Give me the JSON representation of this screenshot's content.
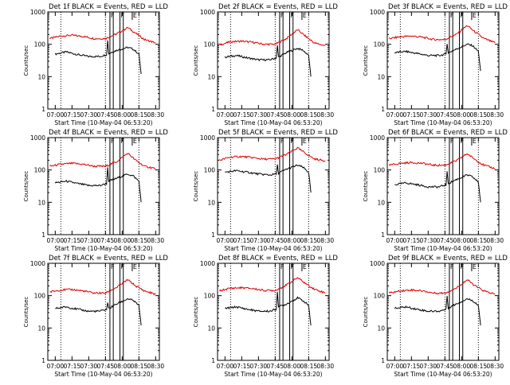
{
  "page": {
    "background": "#ffffff",
    "axis_color": "#000000"
  },
  "chart_data": [
    {
      "type": "line",
      "title": "Det 1f BLACK = Events, RED = LLD",
      "xlabel": "Start Time (10-May-04 06:53:20)",
      "ylabel": "Counts/sec",
      "x_ticks": [
        "07:00",
        "07:15",
        "07:30",
        "07:45",
        "08:00",
        "08:15",
        "08:30"
      ],
      "y_ticks": [
        "1",
        "10",
        "100",
        "1000"
      ],
      "ylim": [
        1,
        1000
      ],
      "y_scale": "log",
      "xlim": [
        "06:53:20",
        "08:33:20"
      ],
      "vertical_dotted_lines": [
        "07:05",
        "07:45",
        "08:15"
      ],
      "band_markers": [
        {
          "label": "F",
          "from": "07:49",
          "to": "07:52"
        },
        {
          "label": "F",
          "from": "07:58",
          "to": "08:01"
        },
        {
          "label": "E",
          "from": "08:09",
          "to": "08:09"
        }
      ],
      "series": [
        {
          "name": "BLACK = Events",
          "color": "#000000",
          "x": [
            "07:00",
            "07:10",
            "07:20",
            "07:30",
            "07:40",
            "07:46",
            "07:47",
            "07:48",
            "07:55",
            "08:05",
            "08:10",
            "08:15",
            "08:17"
          ],
          "y": [
            50,
            58,
            48,
            42,
            42,
            48,
            130,
            52,
            65,
            80,
            70,
            50,
            12
          ]
        },
        {
          "name": "RED = LLD",
          "color": "#dd0000",
          "x": [
            "06:55",
            "07:05",
            "07:15",
            "07:25",
            "07:35",
            "07:45",
            "07:55",
            "08:05",
            "08:12",
            "08:20",
            "08:30"
          ],
          "y": [
            150,
            180,
            190,
            175,
            150,
            150,
            210,
            330,
            220,
            140,
            110
          ]
        }
      ]
    },
    {
      "type": "line",
      "title": "Det 2f BLACK = Events, RED = LLD",
      "xlabel": "Start Time (10-May-04 06:53:20)",
      "ylabel": "Counts/sec",
      "x_ticks": [
        "07:00",
        "07:15",
        "07:30",
        "07:45",
        "08:00",
        "08:15",
        "08:30"
      ],
      "y_ticks": [
        "1",
        "10",
        "100",
        "1000"
      ],
      "ylim": [
        1,
        1000
      ],
      "y_scale": "log",
      "xlim": [
        "06:53:20",
        "08:33:20"
      ],
      "vertical_dotted_lines": [
        "07:05",
        "07:45",
        "08:15"
      ],
      "band_markers": [
        {
          "label": "F",
          "from": "07:49",
          "to": "07:52"
        },
        {
          "label": "F",
          "from": "07:58",
          "to": "08:01"
        },
        {
          "label": "E",
          "from": "08:09",
          "to": "08:09"
        }
      ],
      "series": [
        {
          "name": "BLACK = Events",
          "color": "#000000",
          "x": [
            "07:00",
            "07:10",
            "07:20",
            "07:30",
            "07:40",
            "07:46",
            "07:47",
            "07:48",
            "07:55",
            "08:05",
            "08:10",
            "08:15",
            "08:17"
          ],
          "y": [
            40,
            45,
            38,
            33,
            33,
            38,
            90,
            40,
            55,
            75,
            65,
            45,
            10
          ]
        },
        {
          "name": "RED = LLD",
          "color": "#dd0000",
          "x": [
            "06:55",
            "07:05",
            "07:15",
            "07:25",
            "07:35",
            "07:45",
            "07:55",
            "08:05",
            "08:12",
            "08:20",
            "08:30"
          ],
          "y": [
            95,
            120,
            125,
            115,
            100,
            100,
            150,
            280,
            180,
            110,
            90
          ]
        }
      ]
    },
    {
      "type": "line",
      "title": "Det 3f BLACK = Events, RED = LLD",
      "xlabel": "Start Time (10-May-04 06:53:20)",
      "ylabel": "Counts/sec",
      "x_ticks": [
        "07:00",
        "07:15",
        "07:30",
        "07:45",
        "08:00",
        "08:15",
        "08:30"
      ],
      "y_ticks": [
        "1",
        "10",
        "100",
        "1000"
      ],
      "ylim": [
        1,
        1000
      ],
      "y_scale": "log",
      "xlim": [
        "06:53:20",
        "08:33:20"
      ],
      "vertical_dotted_lines": [
        "07:05",
        "07:45",
        "08:15"
      ],
      "band_markers": [
        {
          "label": "F",
          "from": "07:49",
          "to": "07:52"
        },
        {
          "label": "F",
          "from": "07:58",
          "to": "08:01"
        },
        {
          "label": "E",
          "from": "08:09",
          "to": "08:09"
        }
      ],
      "series": [
        {
          "name": "BLACK = Events",
          "color": "#000000",
          "x": [
            "07:00",
            "07:10",
            "07:20",
            "07:30",
            "07:40",
            "07:46",
            "07:47",
            "07:48",
            "07:55",
            "08:05",
            "08:10",
            "08:15",
            "08:17"
          ],
          "y": [
            55,
            60,
            52,
            45,
            45,
            50,
            110,
            55,
            70,
            100,
            90,
            60,
            15
          ]
        },
        {
          "name": "RED = LLD",
          "color": "#dd0000",
          "x": [
            "06:55",
            "07:05",
            "07:15",
            "07:25",
            "07:35",
            "07:45",
            "07:55",
            "08:05",
            "08:12",
            "08:20",
            "08:30"
          ],
          "y": [
            150,
            170,
            180,
            165,
            140,
            140,
            200,
            380,
            240,
            150,
            110
          ]
        }
      ]
    },
    {
      "type": "line",
      "title": "Det 4f BLACK = Events, RED = LLD",
      "xlabel": "Start Time (10-May-04 06:53:20)",
      "ylabel": "Counts/sec",
      "x_ticks": [
        "07:00",
        "07:15",
        "07:30",
        "07:45",
        "08:00",
        "08:15",
        "08:30"
      ],
      "y_ticks": [
        "1",
        "10",
        "100",
        "1000"
      ],
      "ylim": [
        1,
        1000
      ],
      "y_scale": "log",
      "xlim": [
        "06:53:20",
        "08:33:20"
      ],
      "vertical_dotted_lines": [
        "07:05",
        "07:45",
        "08:15"
      ],
      "band_markers": [
        {
          "label": "F",
          "from": "07:49",
          "to": "07:52"
        },
        {
          "label": "F",
          "from": "07:58",
          "to": "08:01"
        },
        {
          "label": "E",
          "from": "08:09",
          "to": "08:09"
        }
      ],
      "series": [
        {
          "name": "BLACK = Events",
          "color": "#000000",
          "x": [
            "07:00",
            "07:10",
            "07:20",
            "07:30",
            "07:40",
            "07:46",
            "07:47",
            "07:48",
            "07:55",
            "08:05",
            "08:10",
            "08:15",
            "08:17"
          ],
          "y": [
            40,
            45,
            38,
            33,
            33,
            38,
            120,
            45,
            55,
            75,
            65,
            45,
            10
          ]
        },
        {
          "name": "RED = LLD",
          "color": "#dd0000",
          "x": [
            "06:55",
            "07:05",
            "07:15",
            "07:25",
            "07:35",
            "07:45",
            "07:55",
            "08:05",
            "08:12",
            "08:20",
            "08:30"
          ],
          "y": [
            130,
            150,
            160,
            150,
            130,
            130,
            180,
            330,
            200,
            130,
            110
          ]
        }
      ]
    },
    {
      "type": "line",
      "title": "Det 5f BLACK = Events, RED = LLD",
      "xlabel": "Start Time (10-May-04 06:53:20)",
      "ylabel": "Counts/sec",
      "x_ticks": [
        "07:00",
        "07:15",
        "07:30",
        "07:45",
        "08:00",
        "08:15",
        "08:30"
      ],
      "y_ticks": [
        "1",
        "10",
        "100",
        "1000"
      ],
      "ylim": [
        1,
        1000
      ],
      "y_scale": "log",
      "xlim": [
        "06:53:20",
        "08:33:20"
      ],
      "vertical_dotted_lines": [
        "07:05",
        "07:45",
        "08:15"
      ],
      "band_markers": [
        {
          "label": "F",
          "from": "07:49",
          "to": "07:52"
        },
        {
          "label": "F",
          "from": "07:58",
          "to": "08:01"
        },
        {
          "label": "E",
          "from": "08:09",
          "to": "08:09"
        }
      ],
      "series": [
        {
          "name": "BLACK = Events",
          "color": "#000000",
          "x": [
            "07:00",
            "07:10",
            "07:20",
            "07:30",
            "07:40",
            "07:46",
            "07:47",
            "07:48",
            "07:55",
            "08:05",
            "08:10",
            "08:15",
            "08:17"
          ],
          "y": [
            85,
            95,
            85,
            75,
            70,
            75,
            140,
            80,
            105,
            140,
            120,
            85,
            20
          ]
        },
        {
          "name": "RED = LLD",
          "color": "#dd0000",
          "x": [
            "06:55",
            "07:05",
            "07:15",
            "07:25",
            "07:35",
            "07:45",
            "07:55",
            "08:05",
            "08:12",
            "08:20",
            "08:30"
          ],
          "y": [
            200,
            250,
            260,
            240,
            215,
            220,
            300,
            480,
            330,
            220,
            190
          ]
        }
      ]
    },
    {
      "type": "line",
      "title": "Det 6f BLACK = Events, RED = LLD",
      "xlabel": "Start Time (10-May-04 06:53:20)",
      "ylabel": "Counts/sec",
      "x_ticks": [
        "07:00",
        "07:15",
        "07:30",
        "07:45",
        "08:00",
        "08:15",
        "08:30"
      ],
      "y_ticks": [
        "1",
        "10",
        "100",
        "1000"
      ],
      "ylim": [
        1,
        1000
      ],
      "y_scale": "log",
      "xlim": [
        "06:53:20",
        "08:33:20"
      ],
      "vertical_dotted_lines": [
        "07:05",
        "07:45",
        "08:15"
      ],
      "band_markers": [
        {
          "label": "F",
          "from": "07:49",
          "to": "07:52"
        },
        {
          "label": "F",
          "from": "07:58",
          "to": "08:01"
        },
        {
          "label": "E",
          "from": "08:09",
          "to": "08:09"
        }
      ],
      "series": [
        {
          "name": "BLACK = Events",
          "color": "#000000",
          "x": [
            "07:00",
            "07:10",
            "07:20",
            "07:30",
            "07:40",
            "07:46",
            "07:47",
            "07:48",
            "07:55",
            "08:05",
            "08:10",
            "08:15",
            "08:17"
          ],
          "y": [
            35,
            40,
            35,
            30,
            30,
            35,
            85,
            38,
            50,
            70,
            60,
            42,
            10
          ]
        },
        {
          "name": "RED = LLD",
          "color": "#dd0000",
          "x": [
            "06:55",
            "07:05",
            "07:15",
            "07:25",
            "07:35",
            "07:45",
            "07:55",
            "08:05",
            "08:12",
            "08:20",
            "08:30"
          ],
          "y": [
            140,
            160,
            170,
            160,
            140,
            140,
            190,
            320,
            210,
            140,
            110
          ]
        }
      ]
    },
    {
      "type": "line",
      "title": "Det 7f BLACK = Events, RED = LLD",
      "xlabel": "Start Time (10-May-04 06:53:20)",
      "ylabel": "Counts/sec",
      "x_ticks": [
        "07:00",
        "07:15",
        "07:30",
        "07:45",
        "08:00",
        "08:15",
        "08:30"
      ],
      "y_ticks": [
        "1",
        "10",
        "100",
        "1000"
      ],
      "ylim": [
        1,
        1000
      ],
      "y_scale": "log",
      "xlim": [
        "06:53:20",
        "08:33:20"
      ],
      "vertical_dotted_lines": [
        "07:05",
        "07:45",
        "08:15"
      ],
      "band_markers": [
        {
          "label": "F",
          "from": "07:49",
          "to": "07:52"
        },
        {
          "label": "F",
          "from": "07:58",
          "to": "08:01"
        },
        {
          "label": "E",
          "from": "08:09",
          "to": "08:09"
        }
      ],
      "series": [
        {
          "name": "BLACK = Events",
          "color": "#000000",
          "x": [
            "07:00",
            "07:10",
            "07:20",
            "07:30",
            "07:40",
            "07:46",
            "07:47",
            "07:48",
            "07:55",
            "08:05",
            "08:10",
            "08:15",
            "08:17"
          ],
          "y": [
            40,
            45,
            38,
            33,
            33,
            38,
            60,
            40,
            55,
            80,
            70,
            50,
            12
          ]
        },
        {
          "name": "RED = LLD",
          "color": "#dd0000",
          "x": [
            "06:55",
            "07:05",
            "07:15",
            "07:25",
            "07:35",
            "07:45",
            "07:55",
            "08:05",
            "08:12",
            "08:20",
            "08:30"
          ],
          "y": [
            130,
            150,
            155,
            140,
            120,
            120,
            180,
            310,
            200,
            140,
            110
          ]
        }
      ]
    },
    {
      "type": "line",
      "title": "Det 8f BLACK = Events, RED = LLD",
      "xlabel": "Start Time (10-May-04 06:53:20)",
      "ylabel": "Counts/sec",
      "x_ticks": [
        "07:00",
        "07:15",
        "07:30",
        "07:45",
        "08:00",
        "08:15",
        "08:30"
      ],
      "y_ticks": [
        "1",
        "10",
        "100",
        "1000"
      ],
      "ylim": [
        1,
        1000
      ],
      "y_scale": "log",
      "xlim": [
        "06:53:20",
        "08:33:20"
      ],
      "vertical_dotted_lines": [
        "07:05",
        "07:45",
        "08:15"
      ],
      "band_markers": [
        {
          "label": "F",
          "from": "07:49",
          "to": "07:52"
        },
        {
          "label": "F",
          "from": "07:58",
          "to": "08:01"
        },
        {
          "label": "E",
          "from": "08:09",
          "to": "08:09"
        }
      ],
      "series": [
        {
          "name": "BLACK = Events",
          "color": "#000000",
          "x": [
            "07:00",
            "07:10",
            "07:20",
            "07:30",
            "07:40",
            "07:46",
            "07:47",
            "07:48",
            "07:55",
            "08:05",
            "08:10",
            "08:15",
            "08:17"
          ],
          "y": [
            40,
            45,
            38,
            33,
            33,
            38,
            140,
            45,
            55,
            85,
            70,
            50,
            12
          ]
        },
        {
          "name": "RED = LLD",
          "color": "#dd0000",
          "x": [
            "06:55",
            "07:05",
            "07:15",
            "07:25",
            "07:35",
            "07:45",
            "07:55",
            "08:05",
            "08:12",
            "08:20",
            "08:30"
          ],
          "y": [
            140,
            170,
            175,
            165,
            145,
            145,
            210,
            360,
            240,
            160,
            120
          ]
        }
      ]
    },
    {
      "type": "line",
      "title": "Det 9f BLACK = Events, RED = LLD",
      "xlabel": "Start Time (10-May-04 06:53:20)",
      "ylabel": "Counts/sec",
      "x_ticks": [
        "07:00",
        "07:15",
        "07:30",
        "07:45",
        "08:00",
        "08:15",
        "08:30"
      ],
      "y_ticks": [
        "1",
        "10",
        "100",
        "1000"
      ],
      "ylim": [
        1,
        1000
      ],
      "y_scale": "log",
      "xlim": [
        "06:53:20",
        "08:33:20"
      ],
      "vertical_dotted_lines": [
        "07:05",
        "07:45",
        "08:15"
      ],
      "band_markers": [
        {
          "label": "F",
          "from": "07:49",
          "to": "07:52"
        },
        {
          "label": "F",
          "from": "07:58",
          "to": "08:01"
        },
        {
          "label": "E",
          "from": "08:09",
          "to": "08:09"
        }
      ],
      "series": [
        {
          "name": "BLACK = Events",
          "color": "#000000",
          "x": [
            "07:00",
            "07:10",
            "07:20",
            "07:30",
            "07:40",
            "07:46",
            "07:47",
            "07:48",
            "07:55",
            "08:05",
            "08:10",
            "08:15",
            "08:17"
          ],
          "y": [
            40,
            45,
            38,
            33,
            33,
            38,
            100,
            42,
            55,
            80,
            70,
            50,
            12
          ]
        },
        {
          "name": "RED = LLD",
          "color": "#dd0000",
          "x": [
            "06:55",
            "07:05",
            "07:15",
            "07:25",
            "07:35",
            "07:45",
            "07:55",
            "08:05",
            "08:12",
            "08:20",
            "08:30"
          ],
          "y": [
            120,
            140,
            150,
            140,
            120,
            120,
            170,
            310,
            200,
            140,
            110
          ]
        }
      ]
    }
  ]
}
